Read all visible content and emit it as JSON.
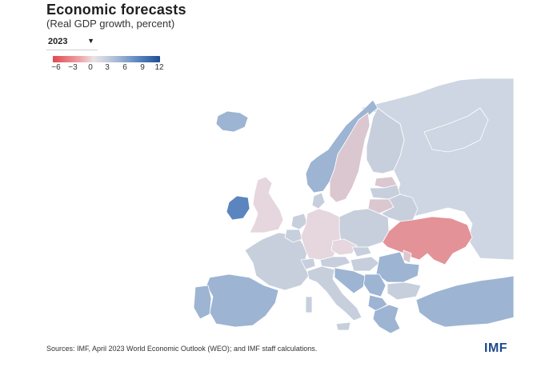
{
  "header": {
    "title": "Economic forecasts",
    "subtitle": "(Real GDP growth, percent)"
  },
  "year_select": {
    "value": "2023"
  },
  "legend": {
    "ticks": [
      "−6",
      "−3",
      "0",
      "3",
      "6",
      "9",
      "12"
    ],
    "min": -6,
    "max": 12
  },
  "colors": {
    "negative_strong": "#e2474f",
    "negative_light": "#efa3a6",
    "neutral": "#e9e3e6",
    "positive_light": "#c7cfdd",
    "positive_mid": "#9db4d3",
    "positive_strong": "#1f4f95",
    "no_data": "#cdd6e2"
  },
  "footer": {
    "source": "Sources: IMF, April 2023 World Economic Outlook (WEO); and IMF staff calculations.",
    "logo": "IMF"
  }
}
